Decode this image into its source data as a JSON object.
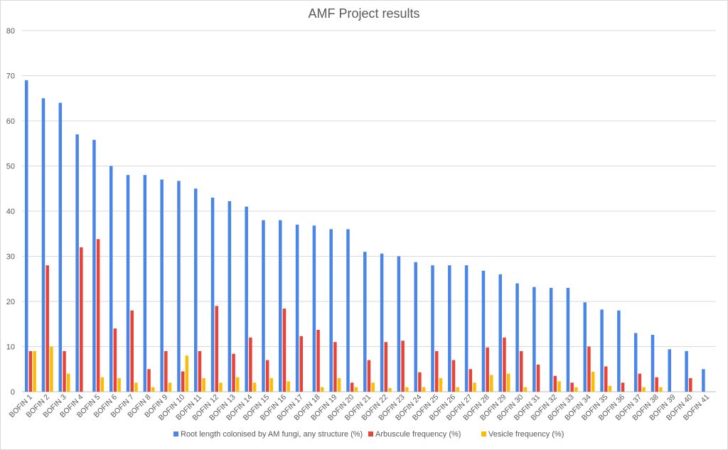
{
  "chart_data": {
    "type": "bar",
    "title": "AMF Project results",
    "xlabel": "",
    "ylabel": "",
    "ylim": [
      0,
      80
    ],
    "yticks": [
      0,
      10,
      20,
      30,
      40,
      50,
      60,
      70,
      80
    ],
    "grid": true,
    "legend_position": "bottom",
    "categories": [
      "BOFIN 1",
      "BOFIN 2",
      "BOFIN 3",
      "BOFIN 4",
      "BOFIN 5",
      "BOFIN 6",
      "BOFIN 7",
      "BOFIN 8",
      "BOFIN 9",
      "BOFIN 10",
      "BOFIN 11",
      "BOFIN 12",
      "BOFIN 13",
      "BOFIN 14",
      "BOFIN 15",
      "BOFIN 16",
      "BOFIN 17",
      "BOFIN 18",
      "BOFIN 19",
      "BOFIN 20",
      "BOFIN 21",
      "BOFIN 22",
      "BOFIN 23",
      "BOFIN 24",
      "BOFIN 25",
      "BOFIN 26",
      "BOFIN 27",
      "BOFIN 28",
      "BOFIN 29",
      "BOFIN 30",
      "BOFIN 31",
      "BOFIN 32",
      "BOFIN 33",
      "BOFIN 34",
      "BOFIN 35",
      "BOFIN 36",
      "BOFIN 37",
      "BOFIN 38",
      "BOFIN 39",
      "BOFIN 40",
      "BOFIN 41"
    ],
    "series": [
      {
        "name": "Root length colonised by AM fungi, any structure (%)",
        "color": "#4a86e8",
        "values": [
          69,
          65,
          64,
          57,
          55.8,
          50,
          48,
          48,
          47,
          46.7,
          45,
          43,
          42.2,
          41,
          38,
          38,
          37,
          36.8,
          36,
          36,
          31,
          30.6,
          30,
          28.7,
          28,
          28,
          28,
          26.8,
          26,
          24,
          23.2,
          23,
          23,
          19.8,
          18.2,
          18,
          13,
          12.6,
          9.4,
          9,
          5
        ]
      },
      {
        "name": "Arbuscule frequency (%)",
        "color": "#ea4335",
        "values": [
          9,
          28,
          9,
          32,
          33.8,
          14,
          18,
          5,
          9,
          4.5,
          9,
          19,
          8.4,
          12,
          7,
          18.4,
          12.3,
          13.7,
          11,
          2,
          7,
          11,
          11.3,
          4.3,
          9,
          7,
          5,
          9.8,
          12,
          9,
          6,
          3.5,
          2,
          10,
          5.6,
          2,
          4,
          3.2,
          0,
          3,
          0
        ]
      },
      {
        "name": "Vesicle frequency (%)",
        "color": "#fbbc04",
        "values": [
          9,
          10,
          4,
          0,
          3.2,
          3,
          2,
          1,
          2,
          8,
          3,
          2,
          3.2,
          2,
          3,
          2.3,
          0,
          1,
          3,
          1,
          2,
          0.8,
          1,
          1,
          3,
          1,
          2,
          3.7,
          4,
          1,
          0,
          2.3,
          1,
          4.4,
          1.3,
          0,
          1,
          1,
          0,
          0,
          0
        ]
      }
    ]
  }
}
